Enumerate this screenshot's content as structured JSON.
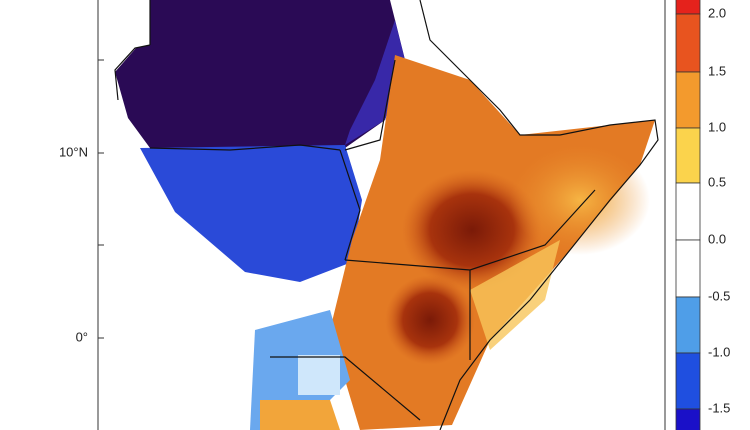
{
  "axis": {
    "latitude_labels": [
      "10°N",
      "0°"
    ]
  },
  "colorbar": {
    "labels": [
      "2.0",
      "1.5",
      "1.0",
      "0.5",
      "0.0",
      "-0.5",
      "-1.0",
      "-1.5"
    ]
  }
}
